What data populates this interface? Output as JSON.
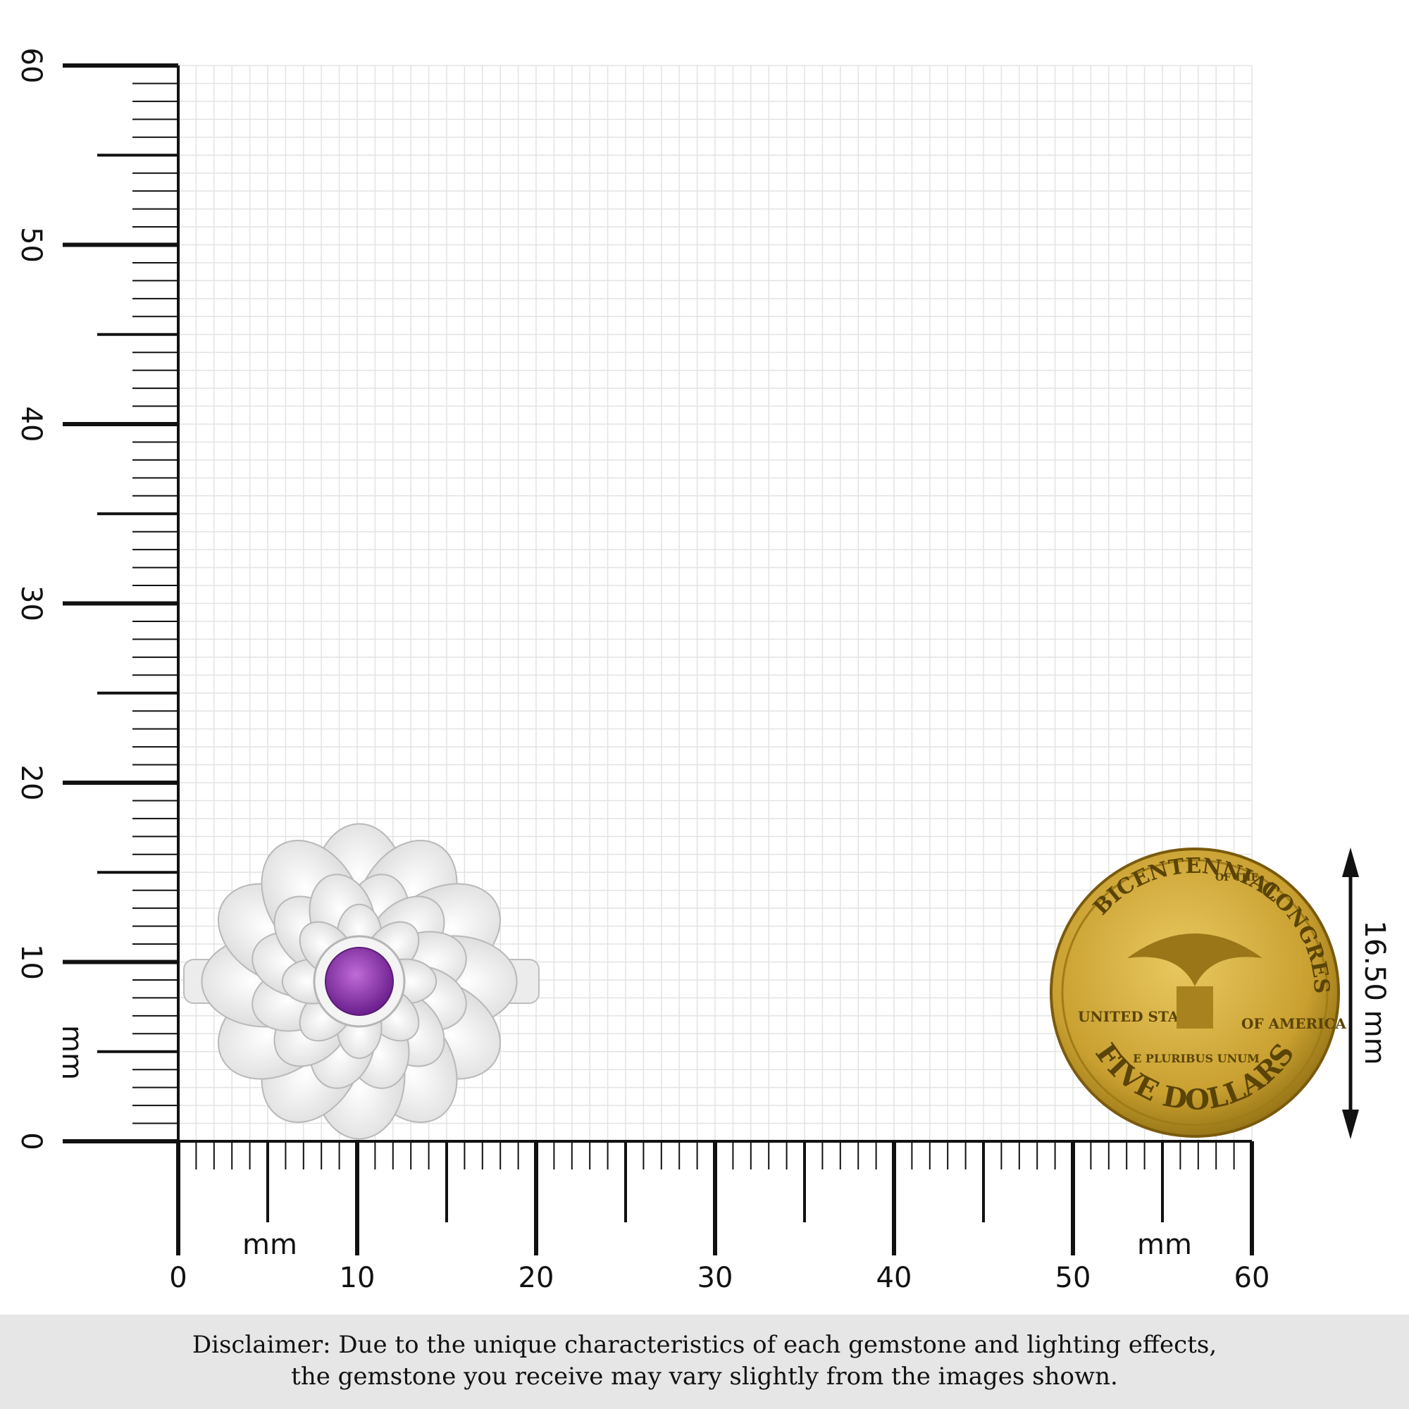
{
  "vertical_ruler": {
    "labels": [
      0,
      10,
      20,
      30,
      40,
      50,
      60
    ],
    "unit": "mm"
  },
  "horizontal_ruler": {
    "labels": [
      0,
      10,
      20,
      30,
      40,
      50,
      60
    ],
    "unit_left": "mm",
    "unit_right": "mm"
  },
  "coin": {
    "top_text": "BICENTENNIAL",
    "of_the": "OF THE",
    "right_text": "CONGRESS",
    "left_text": "UNITED STATES",
    "right_side": "OF AMERICA",
    "motto": "E PLURIBUS UNUM",
    "bottom_text": "FIVE DOLLARS"
  },
  "dimension": {
    "label": "16.50 mm"
  },
  "disclaimer": {
    "line1": "Disclaimer: Due to the unique characteristics of each gemstone and lighting effects,",
    "line2": "the gemstone you receive may vary slightly from the images shown."
  }
}
